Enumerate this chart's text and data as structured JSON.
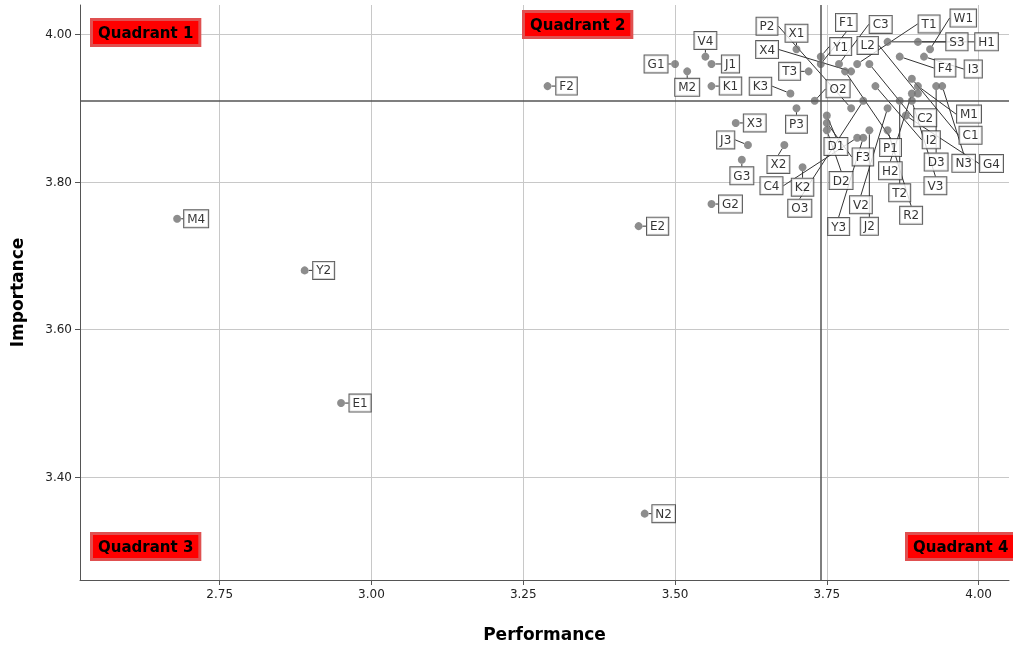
{
  "chart_data": {
    "type": "scatter",
    "xlabel": "Performance",
    "ylabel": "Importance",
    "annotations": [
      "Quadrant 1",
      "Quadrant 2",
      "Quadrant 3",
      "Quadrant 4"
    ],
    "xlim": [
      2.52,
      4.05
    ],
    "ylim": [
      3.26,
      4.04
    ],
    "xticks": [
      {
        "value": 2.75,
        "label": "2.75"
      },
      {
        "value": 3,
        "label": "3.00"
      },
      {
        "value": 3.25,
        "label": "3.25"
      },
      {
        "value": 3.5,
        "label": "3.50"
      },
      {
        "value": 3.75,
        "label": "3.75"
      },
      {
        "value": 4,
        "label": "4.00"
      }
    ],
    "yticks": [
      {
        "value": 3.4,
        "label": "3.40"
      },
      {
        "value": 3.6,
        "label": "3.60"
      },
      {
        "value": 3.8,
        "label": "3.80"
      },
      {
        "value": 4,
        "label": "4.00"
      }
    ],
    "grid": true,
    "marker": "circle",
    "ref_lines": [
      {
        "axis": "x",
        "value": 3.74,
        "color": "#555555"
      },
      {
        "axis": "y",
        "value": 3.91,
        "color": "#555555"
      }
    ],
    "series": [
      {
        "color": "#707070",
        "x": [
          2.68,
          2.89,
          2.95,
          3.44,
          3.45,
          3.29,
          3.56,
          3.5,
          3.52,
          3.55,
          3.56,
          3.56,
          3.6,
          3.62,
          3.61,
          3.7,
          3.72,
          3.69,
          3.73,
          3.7,
          3.68,
          3.71,
          3.75,
          3.75,
          3.75,
          3.74,
          3.74,
          3.77,
          3.8,
          3.79,
          3.82,
          3.87,
          3.9,
          3.92,
          3.91,
          3.85,
          3.78,
          3.83,
          3.9,
          3.89,
          3.93,
          3.94,
          3.89,
          3.9,
          3.89,
          3.87,
          3.85,
          3.88,
          3.85,
          3.82,
          3.81,
          3.8,
          3.79,
          3.81
        ],
        "values": [
          3.75,
          3.68,
          3.5,
          3.74,
          3.35,
          3.93,
          3.77,
          3.96,
          3.95,
          3.97,
          3.96,
          3.93,
          3.88,
          3.85,
          3.83,
          3.98,
          3.95,
          3.92,
          3.91,
          3.9,
          3.85,
          3.82,
          3.89,
          3.88,
          3.87,
          3.97,
          3.96,
          3.96,
          3.96,
          3.95,
          3.96,
          3.97,
          3.99,
          3.98,
          3.97,
          3.99,
          3.95,
          3.93,
          3.93,
          3.94,
          3.93,
          3.93,
          3.92,
          3.92,
          3.91,
          3.91,
          3.9,
          3.89,
          3.87,
          3.87,
          3.86,
          3.86,
          3.9,
          3.91
        ],
        "value_labels": [
          "M4",
          "Y2",
          "E1",
          "E2",
          "N2",
          "F2",
          "G2",
          "G1",
          "M2",
          "V4",
          "J1",
          "K1",
          "X3",
          "J3",
          "G3",
          "X1",
          "T3",
          "K3",
          "O2",
          "P3",
          "X2",
          "K2",
          "D1",
          "F3",
          "D2",
          "Y1",
          "F1",
          "C3",
          "T1",
          "X4",
          "C2",
          "F4",
          "S3",
          "W1",
          "I3",
          "H1",
          "P1",
          "I2",
          "M1",
          "C1",
          "D3",
          "N3",
          "H2",
          "L2",
          "V3",
          "T2",
          "V2",
          "G4",
          "R2",
          "J2",
          "Y3",
          "C4",
          "P2",
          "O3"
        ]
      }
    ]
  }
}
